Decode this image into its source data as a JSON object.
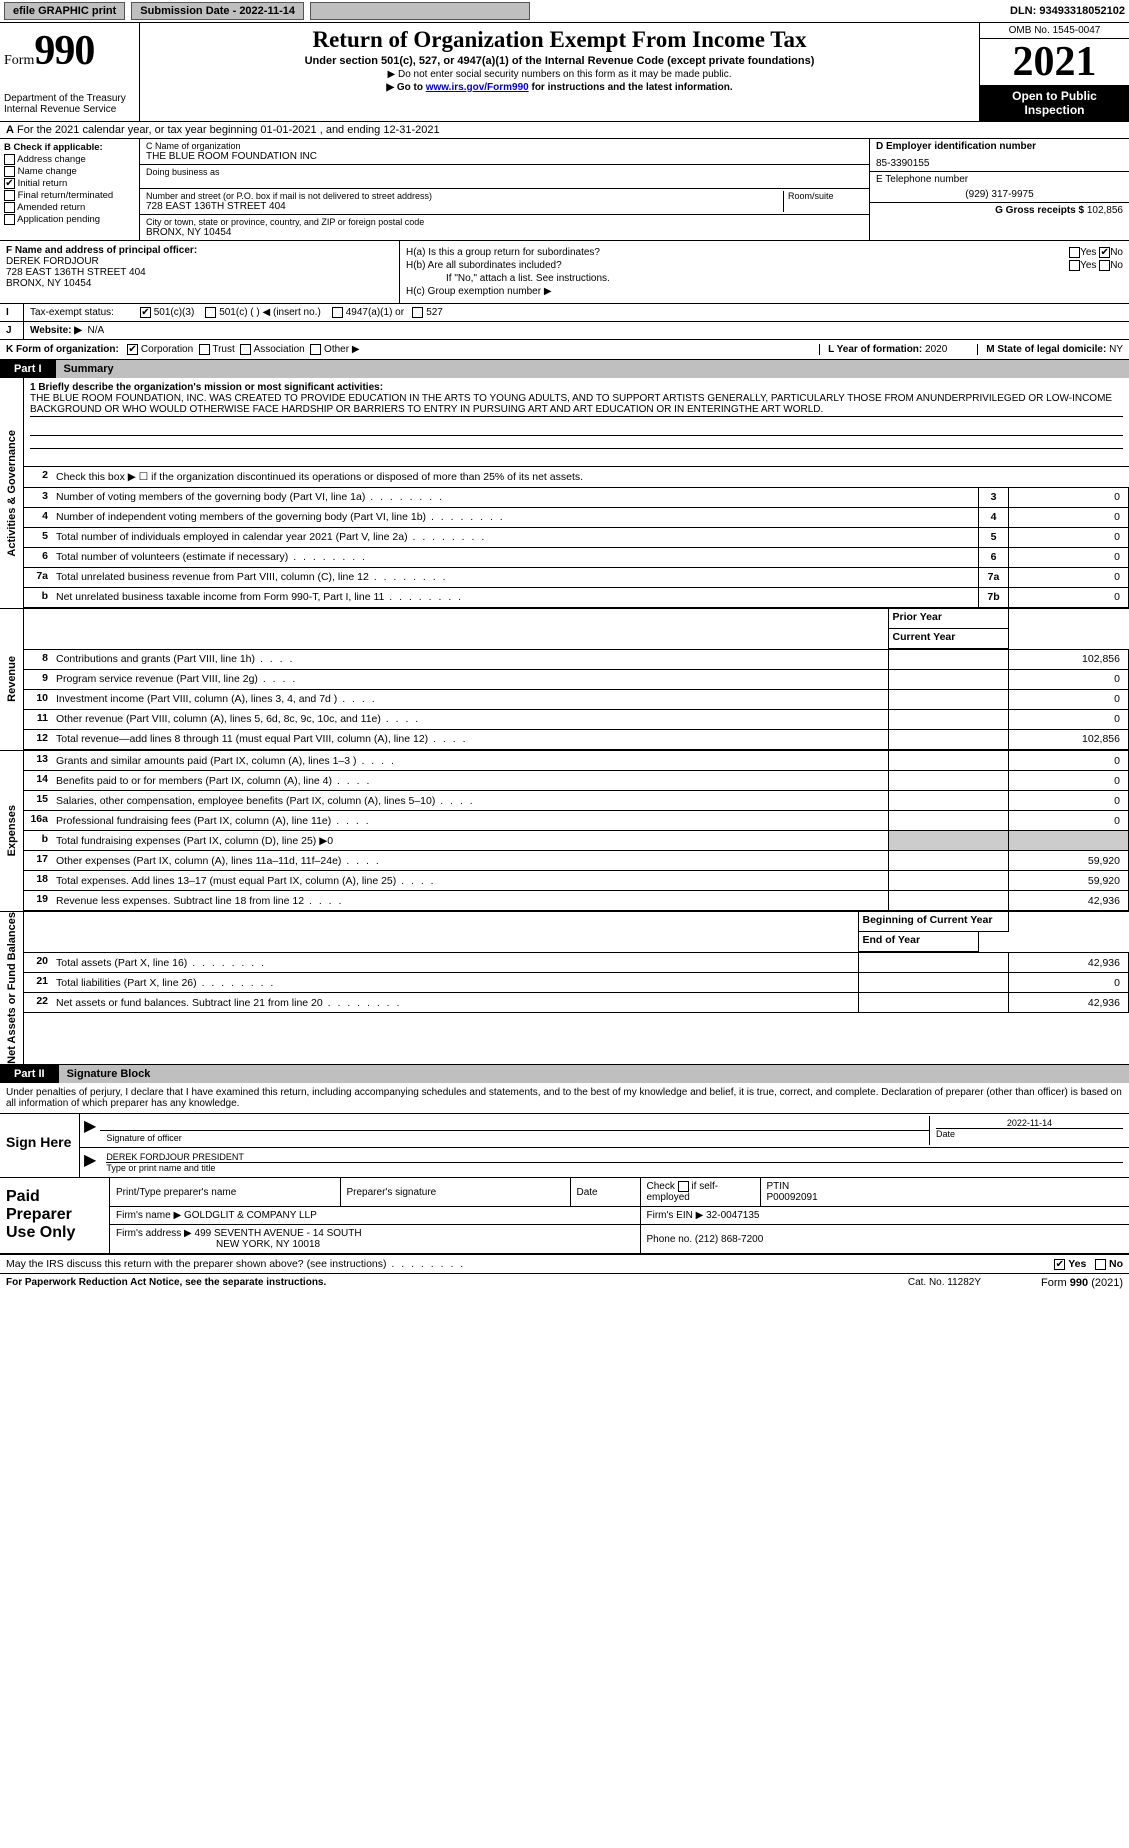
{
  "topbar": {
    "efile": "efile GRAPHIC print",
    "submission_label": "Submission Date - 2022-11-14",
    "dln": "DLN: 93493318052102"
  },
  "header": {
    "form_word": "Form",
    "form_num": "990",
    "title": "Return of Organization Exempt From Income Tax",
    "subtitle": "Under section 501(c), 527, or 4947(a)(1) of the Internal Revenue Code (except private foundations)",
    "note1": "▶ Do not enter social security numbers on this form as it may be made public.",
    "note2_pre": "▶ Go to ",
    "note2_link": "www.irs.gov/Form990",
    "note2_post": " for instructions and the latest information.",
    "dept": "Department of the Treasury",
    "irs": "Internal Revenue Service",
    "omb": "OMB No. 1545-0047",
    "year": "2021",
    "open": "Open to Public Inspection"
  },
  "line_a": "For the 2021 calendar year, or tax year beginning 01-01-2021   , and ending 12-31-2021",
  "col_b": {
    "title": "B Check if applicable:",
    "items": [
      "Address change",
      "Name change",
      "Initial return",
      "Final return/terminated",
      "Amended return",
      "Application pending"
    ],
    "checked_idx": 2
  },
  "col_c": {
    "name_lbl": "C Name of organization",
    "name_val": "THE BLUE ROOM FOUNDATION INC",
    "dba_lbl": "Doing business as",
    "street_lbl": "Number and street (or P.O. box if mail is not delivered to street address)",
    "room_lbl": "Room/suite",
    "street_val": "728 EAST 136TH STREET 404",
    "city_lbl": "City or town, state or province, country, and ZIP or foreign postal code",
    "city_val": "BRONX, NY  10454"
  },
  "col_d": {
    "ein_lbl": "D Employer identification number",
    "ein_val": "85-3390155",
    "phone_lbl": "E Telephone number",
    "phone_val": "(929) 317-9975",
    "gross_lbl": "G Gross receipts $",
    "gross_val": "102,856"
  },
  "block_f": {
    "lbl": "F  Name and address of principal officer:",
    "name": "DEREK FORDJOUR",
    "addr1": "728 EAST 136TH STREET 404",
    "addr2": "BRONX, NY  10454"
  },
  "block_h": {
    "ha": "H(a)  Is this a group return for subordinates?",
    "hb": "H(b)  Are all subordinates included?",
    "hb_note": "If \"No,\" attach a list. See instructions.",
    "hc": "H(c)  Group exemption number ▶",
    "yes": "Yes",
    "no": "No"
  },
  "row_i": {
    "lbl": "Tax-exempt status:",
    "opts": [
      "501(c)(3)",
      "501(c) (  ) ◀ (insert no.)",
      "4947(a)(1) or",
      "527"
    ]
  },
  "row_j": {
    "lbl": "Website: ▶",
    "val": "N/A"
  },
  "row_k": {
    "lbl": "K Form of organization:",
    "opts": [
      "Corporation",
      "Trust",
      "Association",
      "Other ▶"
    ],
    "l_lbl": "L Year of formation:",
    "l_val": "2020",
    "m_lbl": "M State of legal domicile:",
    "m_val": "NY"
  },
  "part1": {
    "tab": "Part I",
    "title": "Summary"
  },
  "mission": {
    "lbl": "1  Briefly describe the organization's mission or most significant activities:",
    "text": "THE BLUE ROOM FOUNDATION, INC. WAS CREATED TO PROVIDE EDUCATION IN THE ARTS TO YOUNG ADULTS, AND TO SUPPORT ARTISTS GENERALLY, PARTICULARLY THOSE FROM ANUNDERPRIVILEGED OR LOW-INCOME BACKGROUND OR WHO WOULD OTHERWISE FACE HARDSHIP OR BARRIERS TO ENTRY IN PURSUING ART AND ART EDUCATION OR IN ENTERINGTHE ART WORLD."
  },
  "vtabs": {
    "gov": "Activities & Governance",
    "rev": "Revenue",
    "exp": "Expenses",
    "net": "Net Assets or Fund Balances"
  },
  "gov_rows": [
    {
      "n": "2",
      "d": "Check this box ▶ ☐ if the organization discontinued its operations or disposed of more than 25% of its net assets.",
      "ref": "",
      "v": ""
    },
    {
      "n": "3",
      "d": "Number of voting members of the governing body (Part VI, line 1a)",
      "ref": "3",
      "v": "0"
    },
    {
      "n": "4",
      "d": "Number of independent voting members of the governing body (Part VI, line 1b)",
      "ref": "4",
      "v": "0"
    },
    {
      "n": "5",
      "d": "Total number of individuals employed in calendar year 2021 (Part V, line 2a)",
      "ref": "5",
      "v": "0"
    },
    {
      "n": "6",
      "d": "Total number of volunteers (estimate if necessary)",
      "ref": "6",
      "v": "0"
    },
    {
      "n": "7a",
      "d": "Total unrelated business revenue from Part VIII, column (C), line 12",
      "ref": "7a",
      "v": "0"
    },
    {
      "n": "b",
      "d": "Net unrelated business taxable income from Form 990-T, Part I, line 11",
      "ref": "7b",
      "v": "0"
    }
  ],
  "col_hdrs": {
    "prior": "Prior Year",
    "current": "Current Year"
  },
  "rev_rows": [
    {
      "n": "8",
      "d": "Contributions and grants (Part VIII, line 1h)",
      "p": "",
      "c": "102,856"
    },
    {
      "n": "9",
      "d": "Program service revenue (Part VIII, line 2g)",
      "p": "",
      "c": "0"
    },
    {
      "n": "10",
      "d": "Investment income (Part VIII, column (A), lines 3, 4, and 7d )",
      "p": "",
      "c": "0"
    },
    {
      "n": "11",
      "d": "Other revenue (Part VIII, column (A), lines 5, 6d, 8c, 9c, 10c, and 11e)",
      "p": "",
      "c": "0"
    },
    {
      "n": "12",
      "d": "Total revenue—add lines 8 through 11 (must equal Part VIII, column (A), line 12)",
      "p": "",
      "c": "102,856"
    }
  ],
  "exp_rows": [
    {
      "n": "13",
      "d": "Grants and similar amounts paid (Part IX, column (A), lines 1–3 )",
      "p": "",
      "c": "0"
    },
    {
      "n": "14",
      "d": "Benefits paid to or for members (Part IX, column (A), line 4)",
      "p": "",
      "c": "0"
    },
    {
      "n": "15",
      "d": "Salaries, other compensation, employee benefits (Part IX, column (A), lines 5–10)",
      "p": "",
      "c": "0"
    },
    {
      "n": "16a",
      "d": "Professional fundraising fees (Part IX, column (A), line 11e)",
      "p": "",
      "c": "0"
    },
    {
      "n": "b",
      "d": "Total fundraising expenses (Part IX, column (D), line 25) ▶0",
      "p": "—",
      "c": "—"
    },
    {
      "n": "17",
      "d": "Other expenses (Part IX, column (A), lines 11a–11d, 11f–24e)",
      "p": "",
      "c": "59,920"
    },
    {
      "n": "18",
      "d": "Total expenses. Add lines 13–17 (must equal Part IX, column (A), line 25)",
      "p": "",
      "c": "59,920"
    },
    {
      "n": "19",
      "d": "Revenue less expenses. Subtract line 18 from line 12",
      "p": "",
      "c": "42,936"
    }
  ],
  "net_hdrs": {
    "beg": "Beginning of Current Year",
    "end": "End of Year"
  },
  "net_rows": [
    {
      "n": "20",
      "d": "Total assets (Part X, line 16)",
      "p": "",
      "c": "42,936"
    },
    {
      "n": "21",
      "d": "Total liabilities (Part X, line 26)",
      "p": "",
      "c": "0"
    },
    {
      "n": "22",
      "d": "Net assets or fund balances. Subtract line 21 from line 20",
      "p": "",
      "c": "42,936"
    }
  ],
  "part2": {
    "tab": "Part II",
    "title": "Signature Block"
  },
  "sig_intro": "Under penalties of perjury, I declare that I have examined this return, including accompanying schedules and statements, and to the best of my knowledge and belief, it is true, correct, and complete. Declaration of preparer (other than officer) is based on all information of which preparer has any knowledge.",
  "sign_here": "Sign Here",
  "sig": {
    "officer_lbl": "Signature of officer",
    "date_lbl": "Date",
    "date_val": "2022-11-14",
    "name_val": "DEREK FORDJOUR  PRESIDENT",
    "name_lbl": "Type or print name and title"
  },
  "prep_title": "Paid Preparer Use Only",
  "prep": {
    "h1": "Print/Type preparer's name",
    "h2": "Preparer's signature",
    "h3": "Date",
    "h4_a": "Check",
    "h4_b": "if self-employed",
    "h5": "PTIN",
    "ptin": "P00092091",
    "firm_lbl": "Firm's name    ▶",
    "firm_val": "GOLDGLIT & COMPANY LLP",
    "ein_lbl": "Firm's EIN ▶",
    "ein_val": "32-0047135",
    "addr_lbl": "Firm's address ▶",
    "addr_val1": "499 SEVENTH AVENUE - 14 SOUTH",
    "addr_val2": "NEW YORK, NY  10018",
    "phone_lbl": "Phone no.",
    "phone_val": "(212) 868-7200"
  },
  "discuss": {
    "q": "May the IRS discuss this return with the preparer shown above? (see instructions)",
    "yes": "Yes",
    "no": "No"
  },
  "footer": {
    "pra": "For Paperwork Reduction Act Notice, see the separate instructions.",
    "cat": "Cat. No. 11282Y",
    "form": "Form 990 (2021)"
  }
}
